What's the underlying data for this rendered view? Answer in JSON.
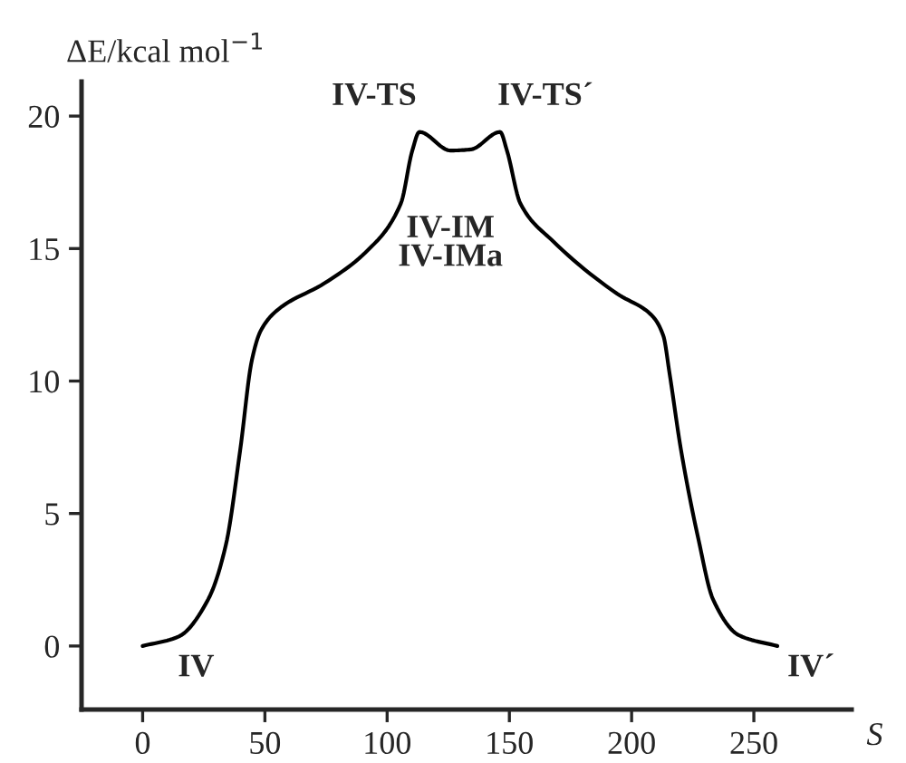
{
  "chart_data": {
    "type": "line",
    "xlabel": "S",
    "ylabel": "ΔE/kcal mol$^{−1}$",
    "xlim": [
      -25,
      290
    ],
    "ylim": [
      -2.4,
      21.3
    ],
    "xticks": [
      0,
      50,
      100,
      150,
      200,
      250
    ],
    "yticks": [
      0,
      5,
      10,
      15,
      20
    ],
    "grid": false,
    "marker": "none",
    "line_style": "solid",
    "series": [
      {
        "color": "#000000",
        "x": [
          0,
          14.8,
          26.8,
          34,
          39.9,
          44.7,
          48.3,
          55.4,
          74.5,
          91.2,
          105.6,
          110.3,
          113.2,
          125.9,
          134.2,
          146.2,
          149,
          154.5,
          167.6,
          194,
          208,
          213,
          215.5,
          220.2,
          227.4,
          233.3,
          244,
          259.6
        ],
        "values": [
          0,
          0.36,
          1.76,
          3.8,
          7.4,
          10.8,
          11.9,
          12.7,
          13.7,
          14.86,
          16.7,
          18.7,
          19.4,
          18.7,
          18.74,
          19.4,
          18.7,
          16.7,
          15.3,
          13.3,
          12.5,
          11.7,
          10.3,
          7.4,
          4.0,
          1.76,
          0.4,
          0
        ]
      }
    ],
    "annotations": [
      {
        "text": "IV",
        "x": 0,
        "y": 0
      },
      {
        "text": "IV´",
        "x": 259.6,
        "y": 0
      },
      {
        "text": "IV-TS",
        "x": 113.2,
        "y": 19.4
      },
      {
        "text": "IV-TS´",
        "x": 146.2,
        "y": 19.4
      },
      "IV-IM\nIV-IMa"
    ]
  }
}
